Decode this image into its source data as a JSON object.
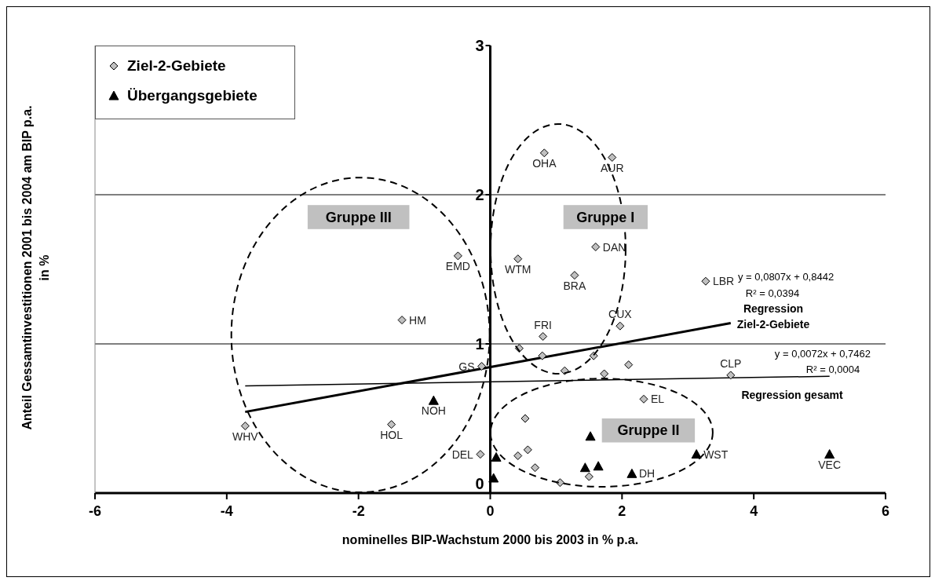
{
  "chart_data": {
    "type": "scatter",
    "xlabel": "nominelles BIP-Wachstum 2000 bis 2003 in % p.a.",
    "ylabel": "Anteil Gessamtinvestitionen 2001 bis 2004 am BIP p.a. in %",
    "xlim": [
      -6,
      6
    ],
    "xticks": [
      -6,
      -4,
      -2,
      0,
      2,
      4,
      6
    ],
    "ylim": [
      0,
      3
    ],
    "yticks": [
      0,
      1,
      2,
      3
    ],
    "grid": "y",
    "legend": "top left",
    "series": [
      {
        "name": "Ziel-2-Gebiete",
        "marker": "diamond",
        "color": "#c0c0c0",
        "x": [
          -3.72,
          -1.5,
          -1.34,
          -0.49,
          -0.13,
          -0.15,
          0.82,
          1.85,
          1.6,
          0.42,
          1.28,
          3.27,
          1.97,
          0.8,
          3.65,
          0.44,
          0.79,
          1.57,
          1.13,
          2.1,
          1.73,
          2.33,
          0.53,
          0.42,
          0.57,
          0.68,
          1.06,
          1.5
        ],
        "values": [
          0.45,
          0.46,
          1.16,
          1.59,
          0.85,
          0.26,
          2.28,
          2.25,
          1.65,
          1.57,
          1.46,
          1.42,
          1.12,
          1.05,
          0.79,
          0.97,
          0.92,
          0.92,
          0.82,
          0.86,
          0.8,
          0.63,
          0.5,
          0.25,
          0.29,
          0.17,
          0.07,
          0.11
        ]
      },
      {
        "name": "Übergangsgebiete",
        "marker": "triangle",
        "color": "#000000",
        "x": [
          -0.86,
          0.09,
          0.05,
          1.52,
          1.44,
          1.64,
          2.15,
          3.13,
          5.15
        ],
        "values": [
          0.62,
          0.24,
          0.1,
          0.38,
          0.17,
          0.18,
          0.13,
          0.26,
          0.26
        ]
      },
      {
        "type": "line",
        "color": "#000000",
        "line_style": "solid",
        "marker": "none",
        "x": [
          -3.72,
          3.65
        ],
        "values": [
          0.544,
          1.139
        ]
      },
      {
        "type": "line",
        "color": "#000000",
        "line_style": "solid",
        "marker": "none",
        "x": [
          -3.72,
          5.15
        ],
        "values": [
          0.719,
          0.783
        ]
      }
    ],
    "annotations": [
      {
        "text": "WHV",
        "x": -3.72,
        "y": 0.45
      },
      {
        "text": "HOL",
        "x": -1.5,
        "y": 0.46
      },
      {
        "text": "HM",
        "x": -1.34,
        "y": 1.16
      },
      {
        "text": "EMD",
        "x": -0.49,
        "y": 1.59
      },
      {
        "text": "GS",
        "x": -0.13,
        "y": 0.85
      },
      {
        "text": "DEL",
        "x": -0.15,
        "y": 0.26
      },
      {
        "text": "OHA",
        "x": 0.82,
        "y": 2.28
      },
      {
        "text": "AUR",
        "x": 1.85,
        "y": 2.25
      },
      {
        "text": "DAN",
        "x": 1.6,
        "y": 1.65
      },
      {
        "text": "WTM",
        "x": 0.42,
        "y": 1.57
      },
      {
        "text": "BRA",
        "x": 1.28,
        "y": 1.46
      },
      {
        "text": "LBR",
        "x": 3.27,
        "y": 1.42
      },
      {
        "text": "CUX",
        "x": 1.97,
        "y": 1.12
      },
      {
        "text": "FRI",
        "x": 0.8,
        "y": 1.05
      },
      {
        "text": "CLP",
        "x": 3.65,
        "y": 0.79
      },
      {
        "text": "EL",
        "x": 2.33,
        "y": 0.63
      },
      {
        "text": "NOH",
        "x": -0.86,
        "y": 0.62
      },
      {
        "text": "DH",
        "x": 2.15,
        "y": 0.13
      },
      {
        "text": "WST",
        "x": 3.13,
        "y": 0.26
      },
      {
        "text": "VEC",
        "x": 5.15,
        "y": 0.26
      },
      "Gruppe I",
      "Gruppe II",
      "Gruppe III",
      "y = 0,0807x + 0,8442",
      "R² = 0,0394",
      "Regression",
      "Ziel-2-Gebiete",
      "y = 0,0072x + 0,7462",
      "R² = 0,0004",
      "Regression  gesamt"
    ]
  }
}
